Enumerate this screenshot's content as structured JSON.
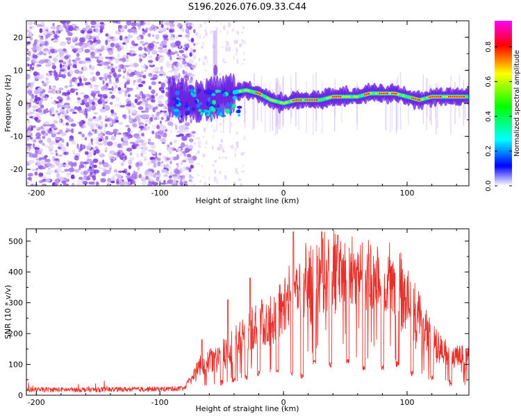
{
  "title": "S196.2026.076.09.33.C44",
  "chart_data": [
    {
      "type": "heatmap",
      "title": "S196.2026.076.09.33.C44",
      "xlabel": "Height of straight line (km)",
      "ylabel": "Frequency (Hz)",
      "xlim": [
        -208,
        150
      ],
      "ylim": [
        -25,
        25
      ],
      "xticks": [
        -200,
        -100,
        0,
        100
      ],
      "xtick_labels": [
        "-200",
        "-100",
        "0",
        "100"
      ],
      "yticks": [
        -20,
        -10,
        0,
        10,
        20
      ],
      "ytick_labels": [
        "-20",
        "-10",
        "0",
        "10",
        "20"
      ],
      "colorbar": {
        "label": "Normalized spectral amplitude",
        "range": [
          0.0,
          0.95
        ],
        "ticks": [
          0.0,
          0.2,
          0.4,
          0.6,
          0.8
        ],
        "tick_labels": [
          "0.0",
          "0.2",
          "0.4",
          "0.6",
          "0.8"
        ],
        "colors": [
          "#ff00ff",
          "#ff0000",
          "#ffff00",
          "#00ff00",
          "#00ffff",
          "#0000ff",
          "#ffffff"
        ]
      },
      "features": {
        "noise_region_x": [
          -208,
          -80
        ],
        "tone_center_hz": [
          [
            -90,
            2
          ],
          [
            -75,
            0
          ],
          [
            -60,
            1
          ],
          [
            -45,
            3
          ],
          [
            -30,
            4
          ],
          [
            -20,
            3
          ],
          [
            -10,
            1
          ],
          [
            0,
            0
          ],
          [
            10,
            1
          ],
          [
            20,
            1
          ],
          [
            30,
            1
          ],
          [
            40,
            2
          ],
          [
            50,
            2
          ],
          [
            60,
            2
          ],
          [
            70,
            3
          ],
          [
            80,
            3
          ],
          [
            90,
            3
          ],
          [
            100,
            2
          ],
          [
            110,
            1
          ],
          [
            120,
            2
          ],
          [
            130,
            2
          ],
          [
            150,
            2
          ]
        ],
        "spike_near_x": -55,
        "spike_peak_hz": 22
      }
    },
    {
      "type": "line",
      "xlabel": "Height of straight line (km)",
      "ylabel": "SNR (10 * v/v)",
      "xlim": [
        -208,
        150
      ],
      "ylim": [
        0,
        540
      ],
      "xticks": [
        -200,
        -100,
        0,
        100
      ],
      "xtick_labels": [
        "-200",
        "-100",
        "0",
        "100"
      ],
      "yticks": [
        0,
        100,
        200,
        300,
        400,
        500
      ],
      "ytick_labels": [
        "0",
        "100",
        "200",
        "300",
        "400",
        "500"
      ],
      "color": "#e8302a",
      "envelope": {
        "x": [
          -208,
          -150,
          -100,
          -80,
          -75,
          -70,
          -60,
          -50,
          -40,
          -30,
          -20,
          -10,
          0,
          10,
          20,
          30,
          40,
          50,
          60,
          70,
          80,
          90,
          100,
          110,
          120,
          130,
          140,
          150
        ],
        "y": [
          18,
          18,
          20,
          22,
          60,
          110,
          140,
          165,
          210,
          260,
          290,
          310,
          360,
          430,
          470,
          500,
          500,
          490,
          485,
          480,
          470,
          450,
          410,
          320,
          220,
          180,
          160,
          150
        ]
      },
      "dropouts_x": [
        -50,
        -40,
        -30,
        -20,
        -5,
        7,
        15,
        25,
        38,
        52,
        65,
        80,
        92,
        104,
        120,
        135
      ],
      "dropout_min": [
        30,
        40,
        50,
        60,
        70,
        60,
        50,
        100,
        90,
        100,
        80,
        80,
        90,
        60,
        50,
        30
      ],
      "noise_amplitude": [
        6,
        45
      ],
      "spike_peaks": [
        [
          -66,
          180
        ],
        [
          -45,
          310
        ],
        [
          -27,
          380
        ],
        [
          8,
          530
        ],
        [
          31,
          530
        ],
        [
          44,
          520
        ]
      ]
    }
  ]
}
